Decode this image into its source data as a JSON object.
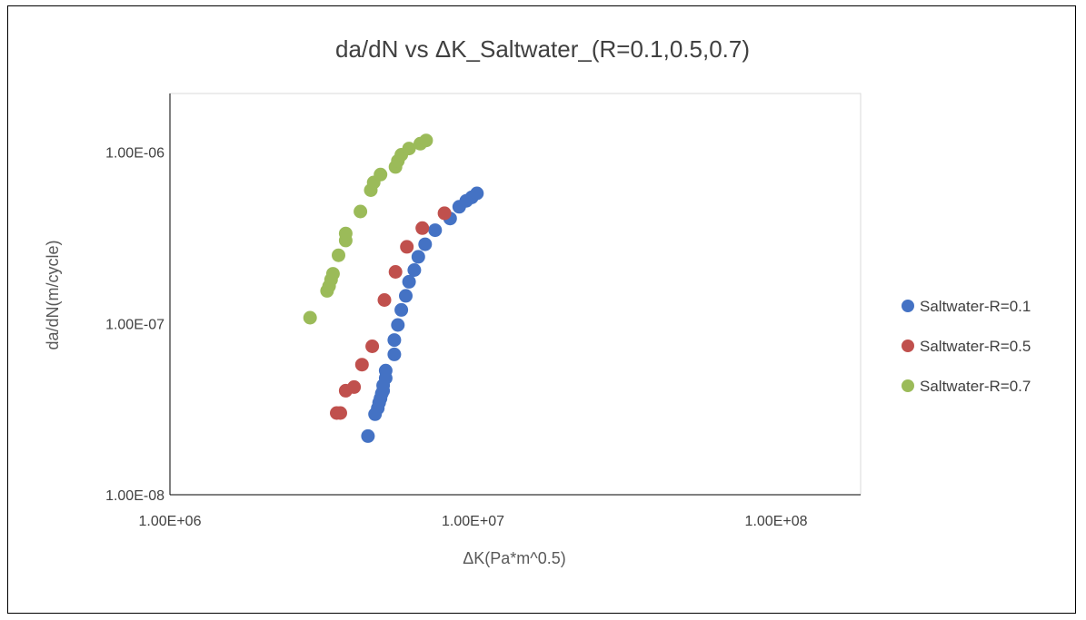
{
  "chart_data": {
    "type": "scatter",
    "title": "da/dN vs ΔK_Saltwater_(R=0.1,0.5,0.7)",
    "xlabel": "ΔK(Pa*m^0.5)",
    "ylabel": "da/dN(m/cycle)",
    "x_scale": "log",
    "y_scale": "log",
    "xlim": [
      1000000,
      190000000
    ],
    "ylim": [
      1e-08,
      2.2e-06
    ],
    "x_ticks": [
      {
        "value": 1000000,
        "label": "1.00E+06"
      },
      {
        "value": 10000000,
        "label": "1.00E+07"
      },
      {
        "value": 100000000,
        "label": "1.00E+08"
      }
    ],
    "y_ticks": [
      {
        "value": 1e-08,
        "label": "1.00E-08"
      },
      {
        "value": 1e-07,
        "label": "1.00E-07"
      },
      {
        "value": 1e-06,
        "label": "1.00E-06"
      }
    ],
    "grid": false,
    "legend_position": "right",
    "series": [
      {
        "name": "Saltwater-R=0.1",
        "color": "#4472C4",
        "points": [
          [
            4500000,
            2.2e-08
          ],
          [
            4750000,
            2.95e-08
          ],
          [
            4850000,
            3.2e-08
          ],
          [
            4900000,
            3.45e-08
          ],
          [
            4950000,
            3.65e-08
          ],
          [
            5000000,
            3.9e-08
          ],
          [
            5050000,
            4.05e-08
          ],
          [
            5050000,
            4.35e-08
          ],
          [
            5150000,
            4.8e-08
          ],
          [
            5150000,
            5.3e-08
          ],
          [
            5500000,
            6.6e-08
          ],
          [
            5500000,
            8e-08
          ],
          [
            5650000,
            9.8e-08
          ],
          [
            5800000,
            1.2e-07
          ],
          [
            6000000,
            1.45e-07
          ],
          [
            6150000,
            1.75e-07
          ],
          [
            6400000,
            2.05e-07
          ],
          [
            6600000,
            2.45e-07
          ],
          [
            6950000,
            2.9e-07
          ],
          [
            7500000,
            3.5e-07
          ],
          [
            8400000,
            4.1e-07
          ],
          [
            9000000,
            4.8e-07
          ],
          [
            9500000,
            5.2e-07
          ],
          [
            9900000,
            5.45e-07
          ],
          [
            10300000,
            5.75e-07
          ]
        ]
      },
      {
        "name": "Saltwater-R=0.5",
        "color": "#C0504D",
        "points": [
          [
            3550000,
            3e-08
          ],
          [
            3650000,
            3e-08
          ],
          [
            3800000,
            4.05e-08
          ],
          [
            4050000,
            4.25e-08
          ],
          [
            4300000,
            5.75e-08
          ],
          [
            4650000,
            7.35e-08
          ],
          [
            5100000,
            1.37e-07
          ],
          [
            5550000,
            2e-07
          ],
          [
            6050000,
            2.8e-07
          ],
          [
            6800000,
            3.6e-07
          ],
          [
            8050000,
            4.4e-07
          ]
        ]
      },
      {
        "name": "Saltwater-R=0.7",
        "color": "#9BBB59",
        "points": [
          [
            2900000,
            1.08e-07
          ],
          [
            3300000,
            1.55e-07
          ],
          [
            3350000,
            1.65e-07
          ],
          [
            3400000,
            1.8e-07
          ],
          [
            3450000,
            1.95e-07
          ],
          [
            3600000,
            2.5e-07
          ],
          [
            3800000,
            3.05e-07
          ],
          [
            3800000,
            3.35e-07
          ],
          [
            4250000,
            4.5e-07
          ],
          [
            4600000,
            6e-07
          ],
          [
            4700000,
            6.65e-07
          ],
          [
            4950000,
            7.4e-07
          ],
          [
            5550000,
            8.2e-07
          ],
          [
            5650000,
            8.9e-07
          ],
          [
            5800000,
            9.65e-07
          ],
          [
            6150000,
            1.05e-06
          ],
          [
            6700000,
            1.12e-06
          ],
          [
            7000000,
            1.17e-06
          ]
        ]
      }
    ]
  }
}
